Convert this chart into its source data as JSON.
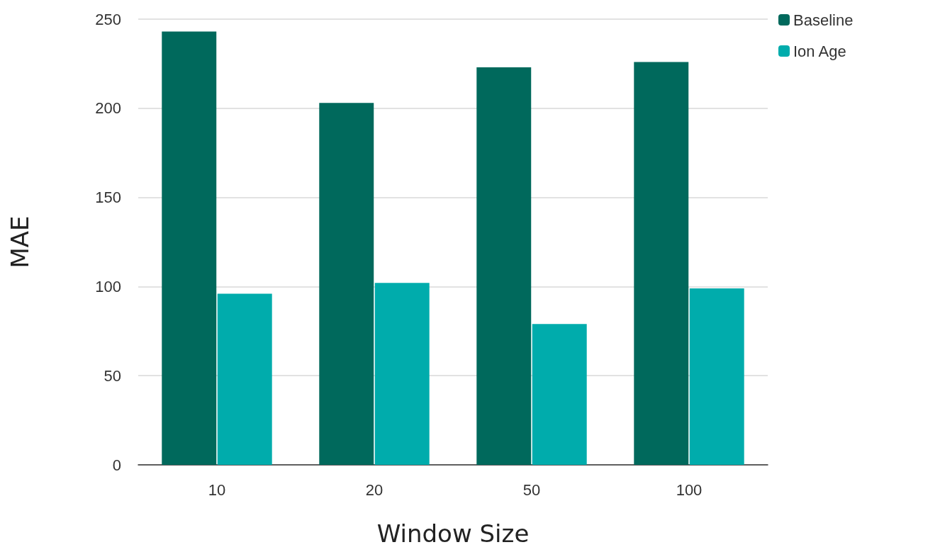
{
  "chart_data": {
    "type": "bar",
    "xlabel": "Window Size",
    "ylabel": "MAE",
    "categories": [
      "10",
      "20",
      "50",
      "100"
    ],
    "series": [
      {
        "name": "Baseline",
        "color": "#00695c",
        "values": [
          243,
          203,
          223,
          226
        ]
      },
      {
        "name": "Ion Age",
        "color": "#00acac",
        "values": [
          96,
          102,
          79,
          99
        ]
      }
    ],
    "ylim": [
      0,
      250
    ],
    "yticks": [
      0,
      50,
      100,
      150,
      200,
      250
    ],
    "grid": "y",
    "legend": "top right"
  }
}
